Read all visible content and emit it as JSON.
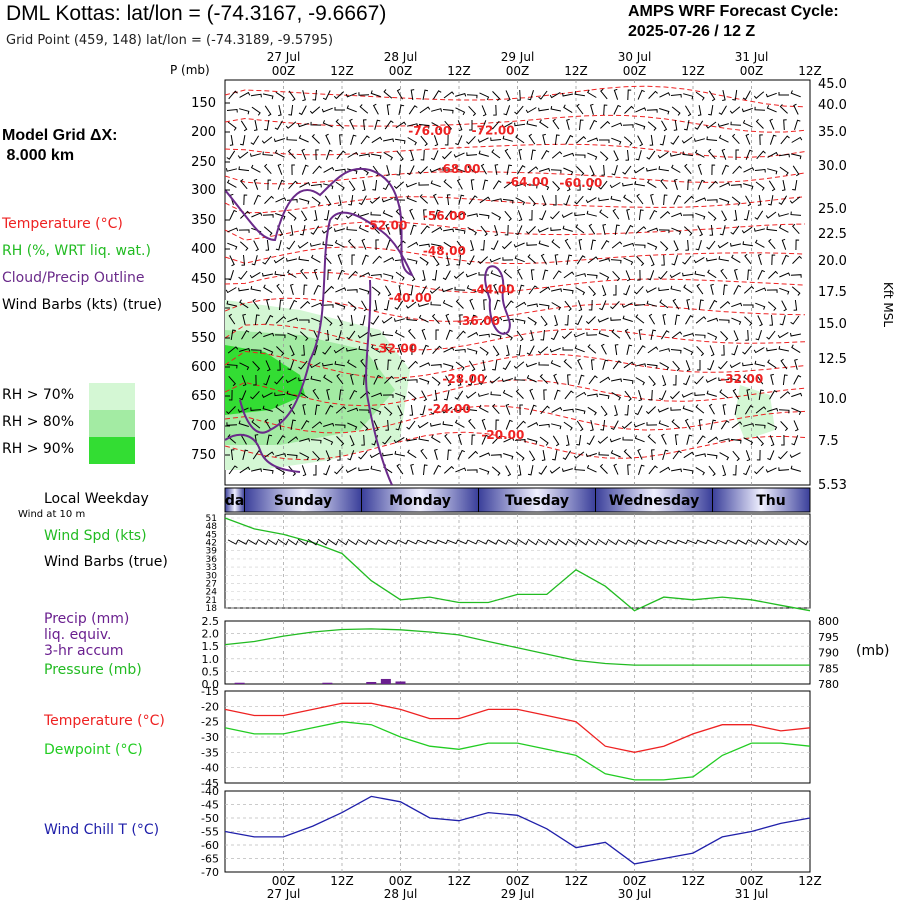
{
  "header": {
    "title": "DML Kottas:  lat/lon = (-74.3167, -9.6667)",
    "subtitle": "Grid Point (459, 148) lat/lon = (-74.3189, -9.5795)",
    "cycle_line1": "AMPS WRF Forecast Cycle:",
    "cycle_line2": "2025-07-26 / 12  Z",
    "grid_line1": "Model Grid ΔX:",
    "grid_line2": " 8.000 km"
  },
  "legend": {
    "temperature": "Temperature (°C)",
    "rh": "RH (%, WRT liq. wat.)",
    "cloud": "Cloud/Precip Outline",
    "wind": "Wind Barbs (kts) (true)",
    "rh70": "RH > 70%",
    "rh80": "RH > 80%",
    "rh90": "RH > 90%",
    "colors": {
      "rh70": "#d4f7d4",
      "rh80": "#a3eba3",
      "rh90": "#33dd33"
    }
  },
  "panel_labels": {
    "p_mb": "P (mb)",
    "kft": "Kft MSL",
    "local_weekday": "Local Weekday",
    "wind_at_10m": "Wind at 10 m",
    "wind_spd": "Wind Spd (kts)",
    "wind_barbs": "Wind Barbs (true)",
    "precip": "Precip (mm)",
    "liq_equiv": "liq. equiv.",
    "accum": "3-hr accum",
    "pressure": "Pressure (mb)",
    "pressure_unit": "(mb)",
    "temperature": "Temperature (°C)",
    "dewpoint": "Dewpoint (°C)",
    "wind_chill": "Wind Chill T (°C)"
  },
  "colors": {
    "temperature": "#ee2222",
    "dewpoint": "#22cc22",
    "wind_speed": "#22bb22",
    "pressure": "#22bb22",
    "precip": "#6a1f8f",
    "cloud": "#6a2a8a",
    "wind_chill": "#2020aa",
    "isotherm": "#ee2222"
  },
  "chart_data": [
    {
      "type": "heatmap",
      "name": "cross-section",
      "x_ticks": [
        "00Z",
        "12Z",
        "00Z",
        "12Z",
        "00Z",
        "12Z",
        "00Z",
        "12Z",
        "00Z",
        "12Z"
      ],
      "x_hours": [
        12,
        24,
        36,
        48,
        60,
        72,
        84,
        96,
        108,
        120
      ],
      "date_labels": [
        {
          "label": "27 Jul",
          "hour": 12
        },
        {
          "label": "28 Jul",
          "hour": 36
        },
        {
          "label": "29 Jul",
          "hour": 60
        },
        {
          "label": "30 Jul",
          "hour": 84
        },
        {
          "label": "31 Jul",
          "hour": 108
        }
      ],
      "xlim_hours": [
        0,
        120
      ],
      "pressure_ticks": [
        150,
        200,
        250,
        300,
        350,
        400,
        450,
        500,
        550,
        600,
        650,
        700,
        750
      ],
      "height_ticks_kft": [
        "45.0",
        "40.0",
        "35.0",
        "30.0",
        "25.0",
        "22.5",
        "20.0",
        "17.5",
        "15.0",
        "12.5",
        "10.0",
        "7.5",
        "5.53"
      ],
      "isotherm_labels": [
        {
          "label": "-76.00",
          "hour": 42,
          "p": 205
        },
        {
          "label": "-72.00",
          "hour": 55,
          "p": 204
        },
        {
          "label": "-68.00",
          "hour": 48,
          "p": 270
        },
        {
          "label": "-64.00",
          "hour": 62,
          "p": 293
        },
        {
          "label": "-60.00",
          "hour": 73,
          "p": 295
        },
        {
          "label": "-56.00",
          "hour": 45,
          "p": 350
        },
        {
          "label": "-52.00",
          "hour": 33,
          "p": 366
        },
        {
          "label": "-48.00",
          "hour": 45,
          "p": 410
        },
        {
          "label": "-44.00",
          "hour": 55,
          "p": 475
        },
        {
          "label": "-40.00",
          "hour": 38,
          "p": 490
        },
        {
          "label": "-36.00",
          "hour": 52,
          "p": 528
        },
        {
          "label": "-32.00",
          "hour": 35,
          "p": 575
        },
        {
          "label": "-28.00",
          "hour": 49,
          "p": 628
        },
        {
          "label": "-24.00",
          "hour": 46,
          "p": 678
        },
        {
          "label": "-20.00",
          "hour": 57,
          "p": 722
        },
        {
          "label": "-32.00",
          "hour": 106,
          "p": 628
        }
      ]
    },
    {
      "type": "line",
      "name": "surface-wind-speed",
      "ylabel": "Wind Spd (kts)",
      "y_ticks": [
        18,
        21,
        24,
        27,
        30,
        33,
        36,
        39,
        42,
        45,
        48,
        51
      ],
      "ylim": [
        18,
        51
      ],
      "x_hours": [
        0,
        6,
        12,
        18,
        24,
        30,
        36,
        42,
        48,
        54,
        60,
        66,
        72,
        78,
        84,
        90,
        96,
        102,
        108,
        114,
        120
      ],
      "series": [
        {
          "values": [
            51,
            47,
            45,
            42,
            38,
            28,
            21,
            22,
            20,
            20,
            23,
            23,
            32,
            26,
            17,
            22,
            21,
            22,
            21,
            19,
            17
          ]
        }
      ]
    },
    {
      "type": "line",
      "name": "precip-pressure",
      "y_left_ticks": [
        "2.5",
        "2.0",
        "1.5",
        "1.0",
        "0.5",
        "0.0"
      ],
      "y_right_ticks": [
        800,
        795,
        790,
        785,
        780
      ],
      "precip_bars": [
        {
          "hour": 3,
          "value": 0.05
        },
        {
          "hour": 21,
          "value": 0.05
        },
        {
          "hour": 30,
          "value": 0.08
        },
        {
          "hour": 33,
          "value": 0.2
        },
        {
          "hour": 36,
          "value": 0.1
        }
      ],
      "x_hours": [
        0,
        6,
        12,
        18,
        24,
        30,
        36,
        42,
        48,
        54,
        60,
        66,
        72,
        78,
        84,
        90,
        96,
        102,
        108,
        114,
        120
      ],
      "series": [
        {
          "values": [
            792.5,
            793.5,
            795.2,
            796.5,
            797.3,
            797.5,
            797.2,
            796.5,
            795.6,
            793.5,
            791.5,
            789.5,
            787.5,
            786.5,
            786,
            786,
            786,
            786,
            786,
            786,
            786
          ]
        }
      ]
    },
    {
      "type": "line",
      "name": "temperature-dewpoint",
      "y_ticks": [
        -15,
        -20,
        -25,
        -30,
        -35,
        -40,
        -45
      ],
      "ylim": [
        -45,
        -15
      ],
      "x_hours": [
        0,
        6,
        12,
        18,
        24,
        30,
        36,
        42,
        48,
        54,
        60,
        66,
        72,
        78,
        84,
        90,
        96,
        102,
        108,
        114,
        120
      ],
      "series": [
        {
          "name": "Temperature (°C)",
          "values": [
            -21,
            -23,
            -23,
            -21,
            -19,
            -19,
            -21,
            -24,
            -24,
            -21,
            -21,
            -23,
            -25,
            -33,
            -35,
            -33,
            -29,
            -26,
            -26,
            -28,
            -27
          ]
        },
        {
          "name": "Dewpoint (°C)",
          "values": [
            -27,
            -29,
            -29,
            -27,
            -25,
            -26,
            -30,
            -33,
            -34,
            -32,
            -32,
            -34,
            -36,
            -42,
            -44,
            -44,
            -43,
            -36,
            -32,
            -32,
            -33
          ]
        }
      ]
    },
    {
      "type": "line",
      "name": "wind-chill",
      "y_ticks": [
        -40,
        -45,
        -50,
        -55,
        -60,
        -65,
        -70
      ],
      "ylim": [
        -70,
        -40
      ],
      "x_hours": [
        0,
        6,
        12,
        18,
        24,
        30,
        36,
        42,
        48,
        54,
        60,
        66,
        72,
        78,
        84,
        90,
        96,
        102,
        108,
        114,
        120
      ],
      "series": [
        {
          "name": "Wind Chill T (°C)",
          "values": [
            -55,
            -57,
            -57,
            -53,
            -48,
            -42,
            -44,
            -50,
            -51,
            -48,
            -49,
            -54,
            -61,
            -59,
            -67,
            -65,
            -63,
            -57,
            -55,
            -52,
            -50
          ]
        }
      ]
    }
  ],
  "weekday_band": {
    "days": [
      {
        "label": "day",
        "start": 0,
        "end": 4
      },
      {
        "label": "Sunday",
        "start": 4,
        "end": 28
      },
      {
        "label": "Monday",
        "start": 28,
        "end": 52
      },
      {
        "label": "Tuesday",
        "start": 52,
        "end": 76
      },
      {
        "label": "Wednesday",
        "start": 76,
        "end": 100
      },
      {
        "label": "Thu",
        "start": 100,
        "end": 124
      }
    ]
  }
}
